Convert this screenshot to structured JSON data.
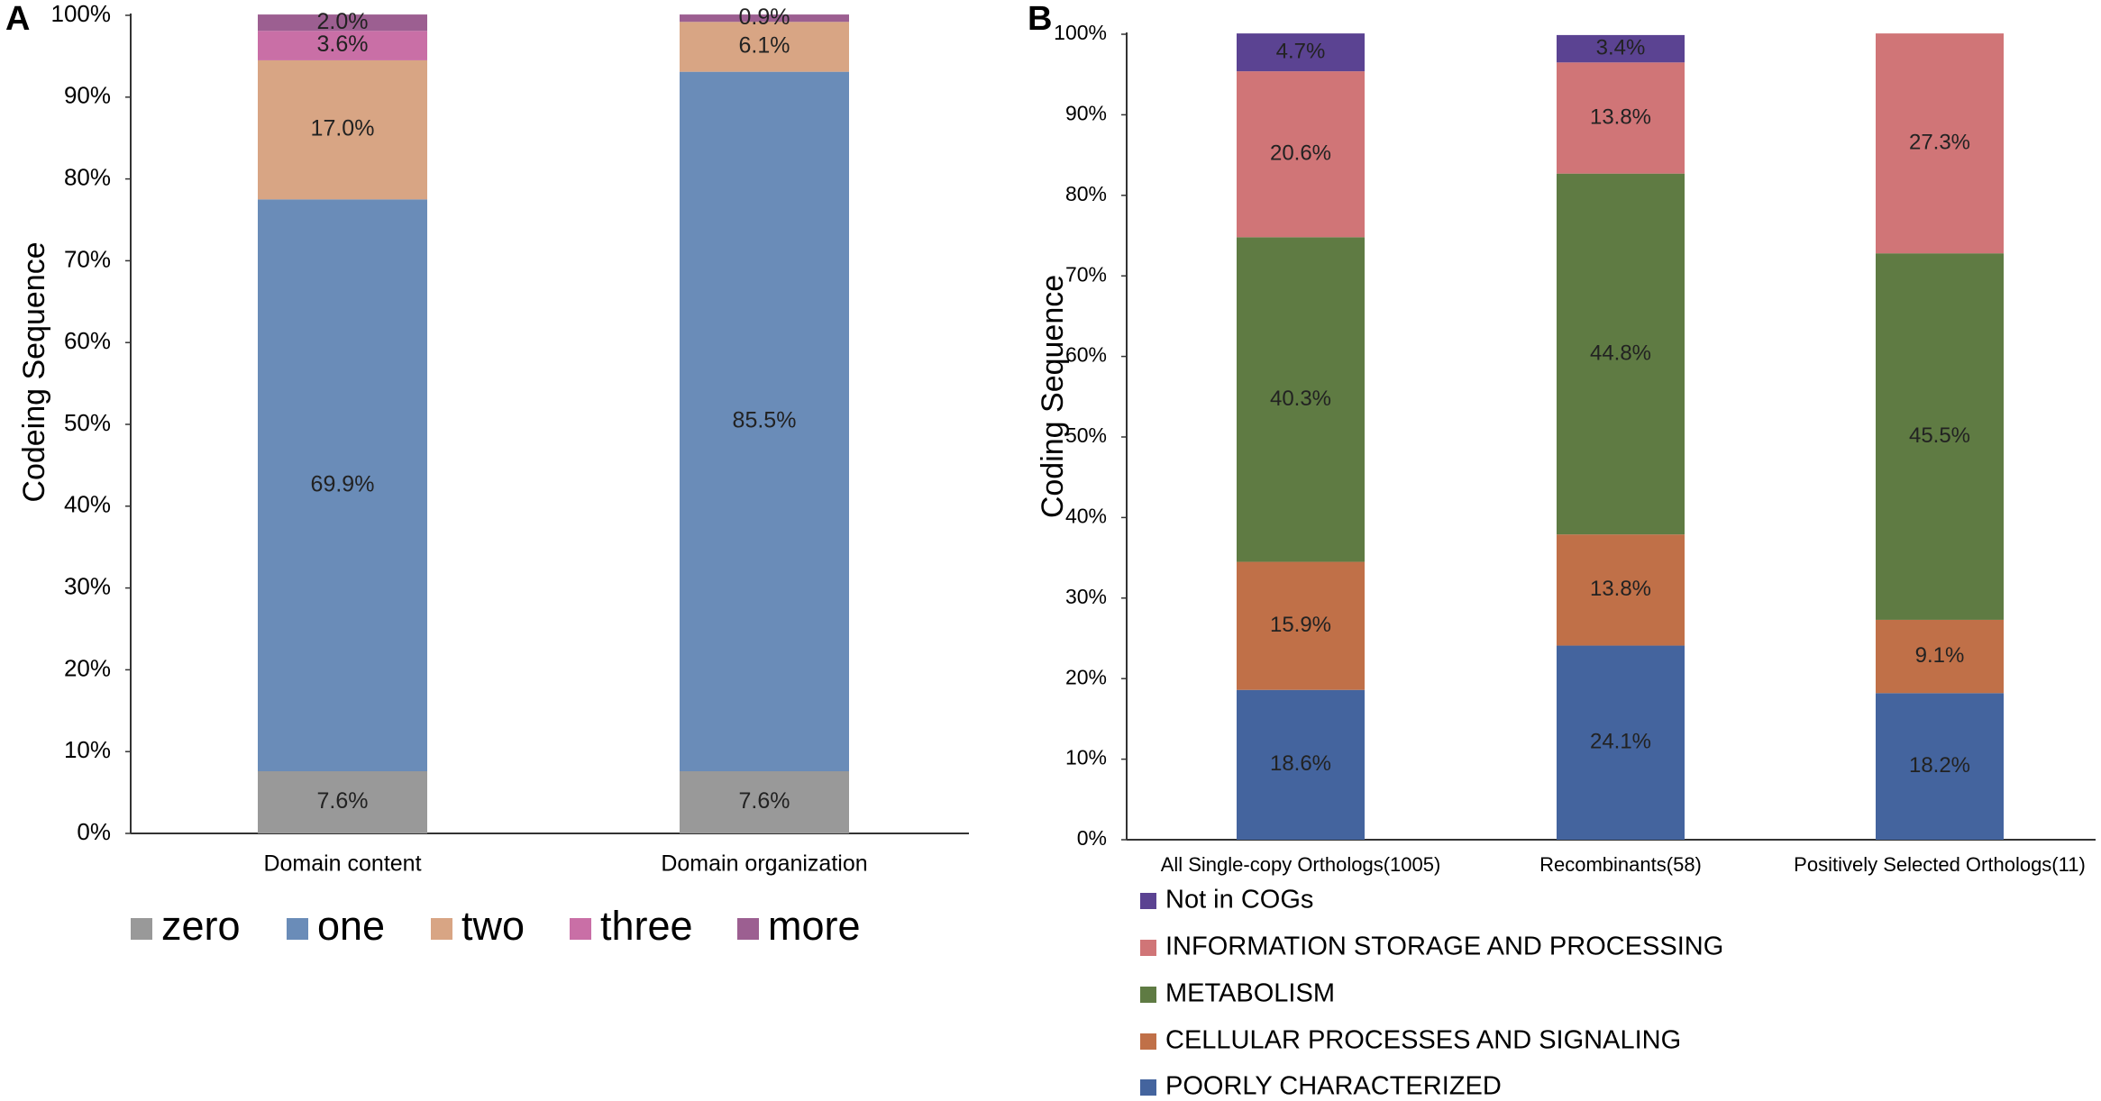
{
  "chart_data": [
    {
      "panel_label": "A",
      "type": "bar",
      "stacked": true,
      "ylabel": "Codeing Sequence",
      "xlabel": "",
      "ylim": [
        0,
        100
      ],
      "ytick_labels": [
        "0%",
        "10%",
        "20%",
        "30%",
        "40%",
        "50%",
        "60%",
        "70%",
        "80%",
        "90%",
        "100%"
      ],
      "grid": false,
      "legend_position": "bottom",
      "categories": [
        "Domain content",
        "Domain organization"
      ],
      "series": [
        {
          "name": "zero",
          "color": "#999999",
          "values": [
            7.6,
            7.6
          ],
          "labels": [
            "7.6%",
            "7.6%"
          ]
        },
        {
          "name": "one",
          "color": "#6A8CB8",
          "values": [
            69.9,
            85.5
          ],
          "labels": [
            "69.9%",
            "85.5%"
          ]
        },
        {
          "name": "two",
          "color": "#D8A584",
          "values": [
            17.0,
            6.1
          ],
          "labels": [
            "17.0%",
            "6.1%"
          ]
        },
        {
          "name": "three",
          "color": "#C96FA6",
          "values": [
            3.6,
            0.0
          ],
          "labels": [
            "3.6%",
            ""
          ]
        },
        {
          "name": "more",
          "color": "#9C5F91",
          "values": [
            2.0,
            0.9
          ],
          "labels": [
            "2.0%",
            "0.9%"
          ]
        }
      ]
    },
    {
      "panel_label": "B",
      "type": "bar",
      "stacked": true,
      "ylabel": "Coding Sequence",
      "xlabel": "",
      "ylim": [
        0,
        100
      ],
      "ytick_labels": [
        "0%",
        "10%",
        "20%",
        "30%",
        "40%",
        "50%",
        "60%",
        "70%",
        "80%",
        "90%",
        "100%"
      ],
      "grid": false,
      "legend_position": "bottom",
      "categories": [
        "All Single-copy Orthologs(1005)",
        "Recombinants(58)",
        "Positively Selected Orthologs(11)"
      ],
      "series": [
        {
          "name": "POORLY CHARACTERIZED",
          "color": "#44649E",
          "values": [
            18.6,
            24.1,
            18.2
          ],
          "labels": [
            "18.6%",
            "24.1%",
            "18.2%"
          ]
        },
        {
          "name": "CELLULAR PROCESSES AND SIGNALING",
          "color": "#C07048",
          "values": [
            15.9,
            13.8,
            9.1
          ],
          "labels": [
            "15.9%",
            "13.8%",
            "9.1%"
          ]
        },
        {
          "name": "METABOLISM",
          "color": "#5F7B43",
          "values": [
            40.3,
            44.8,
            45.5
          ],
          "labels": [
            "40.3%",
            "44.8%",
            "45.5%"
          ]
        },
        {
          "name": "INFORMATION STORAGE AND PROCESSING",
          "color": "#D07577",
          "values": [
            20.6,
            13.8,
            27.3
          ],
          "labels": [
            "20.6%",
            "13.8%",
            "27.3%"
          ]
        },
        {
          "name": "Not in COGs",
          "color": "#5B4392",
          "values": [
            4.7,
            3.4,
            0.0
          ],
          "labels": [
            "4.7%",
            "3.4%",
            ""
          ]
        }
      ]
    }
  ]
}
